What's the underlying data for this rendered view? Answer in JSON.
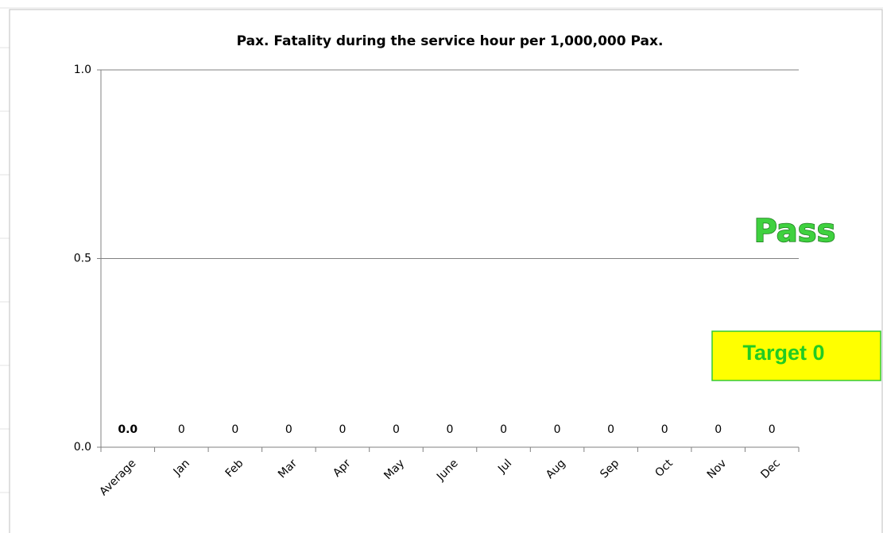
{
  "chart_data": {
    "type": "bar",
    "title": "Pax. Fatality during the service hour per 1,000,000  Pax.",
    "categories": [
      "Average",
      "Jan",
      "Feb",
      "Mar",
      "Apr",
      "May",
      "June",
      "Jul",
      "Aug",
      "Sep",
      "Oct",
      "Nov",
      "Dec"
    ],
    "values": [
      0,
      0,
      0,
      0,
      0,
      0,
      0,
      0,
      0,
      0,
      0,
      0,
      0
    ],
    "value_labels": [
      "0.0",
      "0",
      "0",
      "0",
      "0",
      "0",
      "0",
      "0",
      "0",
      "0",
      "0",
      "0",
      "0"
    ],
    "color": "#4472c4",
    "ylim": [
      0,
      1
    ],
    "yticks": [
      {
        "value": 0,
        "label": "0.0"
      },
      {
        "value": 0.5,
        "label": "0.5"
      },
      {
        "value": 1,
        "label": "1.0"
      }
    ],
    "grid": true,
    "annotations": [
      "Pass",
      "Target 0"
    ]
  }
}
